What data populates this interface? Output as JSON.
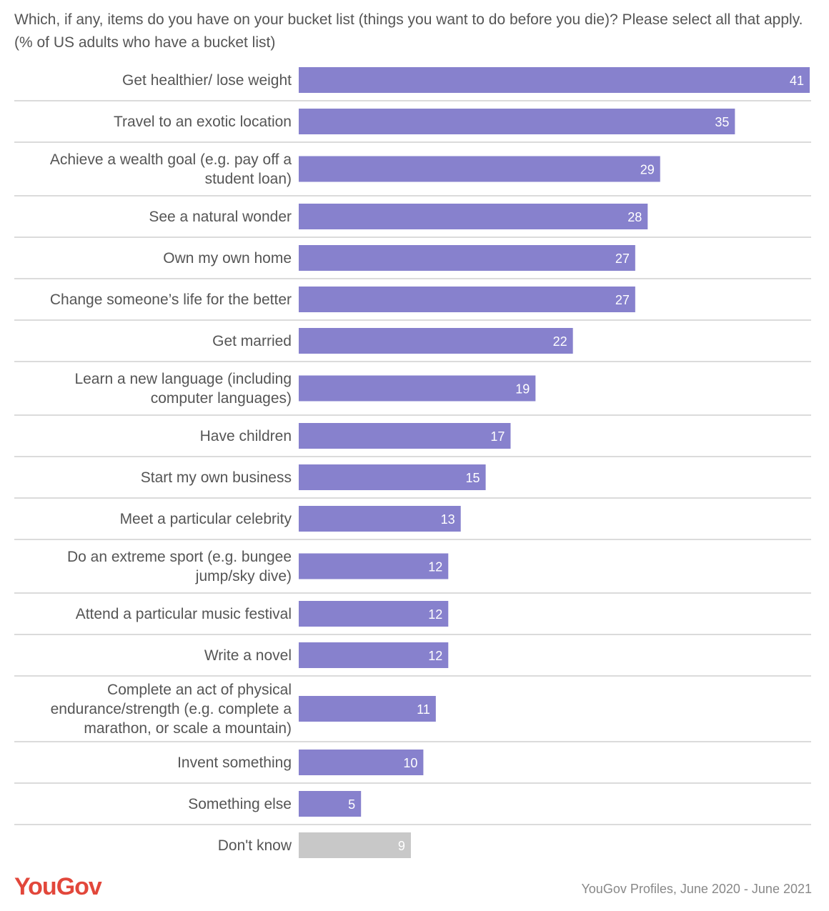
{
  "chart_data": {
    "type": "bar",
    "orientation": "horizontal",
    "title": "Which, if any, items do you have on your bucket list (things you want to do before you die)? Please select all that apply. (% of US adults who have a bucket list)",
    "categories": [
      [
        "Get healthier/ lose weight"
      ],
      [
        "Travel to an exotic location"
      ],
      [
        "Achieve a wealth goal (e.g. pay off a",
        "student loan)"
      ],
      [
        "See a natural wonder"
      ],
      [
        "Own my own home"
      ],
      [
        "Change someone’s life for the better"
      ],
      [
        "Get married"
      ],
      [
        "Learn a new language (including",
        "computer languages)"
      ],
      [
        "Have children"
      ],
      [
        "Start my own business"
      ],
      [
        "Meet a particular celebrity"
      ],
      [
        "Do an extreme sport (e.g. bungee",
        "jump/sky dive)"
      ],
      [
        "Attend a particular music festival"
      ],
      [
        "Write a novel"
      ],
      [
        "Complete an act of physical",
        "endurance/strength (e.g. complete a",
        "marathon, or scale a mountain)"
      ],
      [
        "Invent something"
      ],
      [
        "Something else"
      ],
      [
        "Don't know"
      ]
    ],
    "values": [
      41,
      35,
      29,
      28,
      27,
      27,
      22,
      19,
      17,
      15,
      13,
      12,
      12,
      12,
      11,
      10,
      5,
      9
    ],
    "value_labels": [
      "41",
      "35",
      "29",
      "28",
      "27",
      "27",
      "22",
      "19",
      "17",
      "15",
      "13",
      "12",
      "12",
      "12",
      "11",
      "10",
      "5",
      "9"
    ],
    "highlight_colors": {
      "default": "#8781cd",
      "dont_know": "#c8c8c8"
    },
    "xlim": [
      0,
      41
    ],
    "grid": false,
    "legend": "none"
  },
  "branding": {
    "logo": "YouGov",
    "source": "YouGov Profiles, June 2020 - June 2021"
  }
}
